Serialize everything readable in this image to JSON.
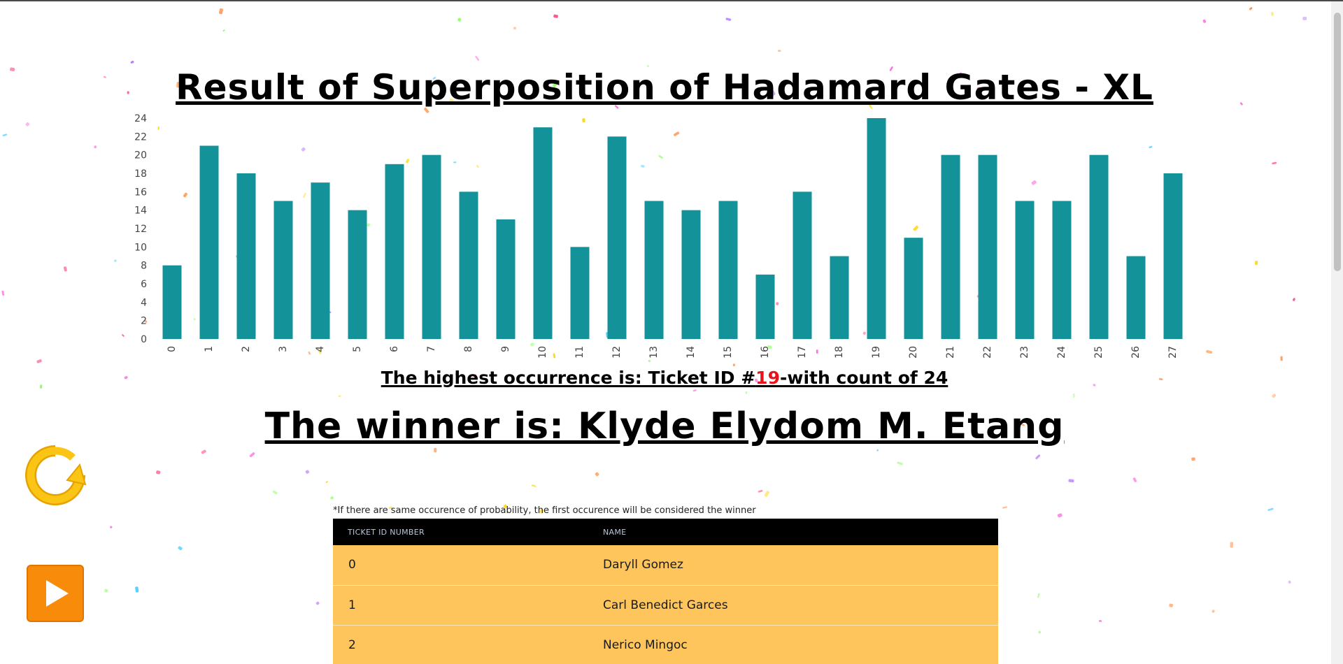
{
  "header": {
    "title": "Result of Superposition of Hadamard Gates - XL"
  },
  "result": {
    "highest_prefix": "The highest occurrence is: Ticket ID #",
    "highest_id": "19",
    "highest_suffix": "-with count of 24",
    "winner": "The winner is: Klyde Elydom M. Etang"
  },
  "controls": {
    "refresh_icon": "refresh-icon",
    "play_icon": "play-icon",
    "refresh_color": "#fbc515",
    "play_color": "#f98b0b"
  },
  "note": "*If there are same occurence of probability, the first occurence will be considered the winner",
  "table": {
    "headers": [
      "TICKET ID NUMBER",
      "NAME"
    ],
    "rows": [
      {
        "id": "0",
        "name": "Daryll Gomez"
      },
      {
        "id": "1",
        "name": "Carl Benedict Garces"
      },
      {
        "id": "2",
        "name": "Nerico Mingoc"
      }
    ],
    "header_bg": "#000000",
    "row_bg": "#fec55c"
  },
  "chart_data": {
    "type": "bar",
    "categories": [
      "0",
      "1",
      "2",
      "3",
      "4",
      "5",
      "6",
      "7",
      "8",
      "9",
      "10",
      "11",
      "12",
      "13",
      "14",
      "15",
      "16",
      "17",
      "18",
      "19",
      "20",
      "21",
      "22",
      "23",
      "24",
      "25",
      "26",
      "27"
    ],
    "values": [
      8,
      21,
      18,
      15,
      17,
      14,
      19,
      20,
      16,
      13,
      23,
      10,
      22,
      15,
      14,
      15,
      7,
      16,
      9,
      24,
      11,
      20,
      20,
      15,
      15,
      20,
      9,
      18
    ],
    "y_ticks": [
      "0",
      "2",
      "4",
      "6",
      "8",
      "10",
      "12",
      "14",
      "16",
      "18",
      "20",
      "22",
      "24"
    ],
    "ylim": [
      0,
      24
    ],
    "title": "Result of Superposition of Hadamard Gates - XL",
    "xlabel": "",
    "ylabel": "",
    "grid": false,
    "bar_color": "#139399"
  }
}
